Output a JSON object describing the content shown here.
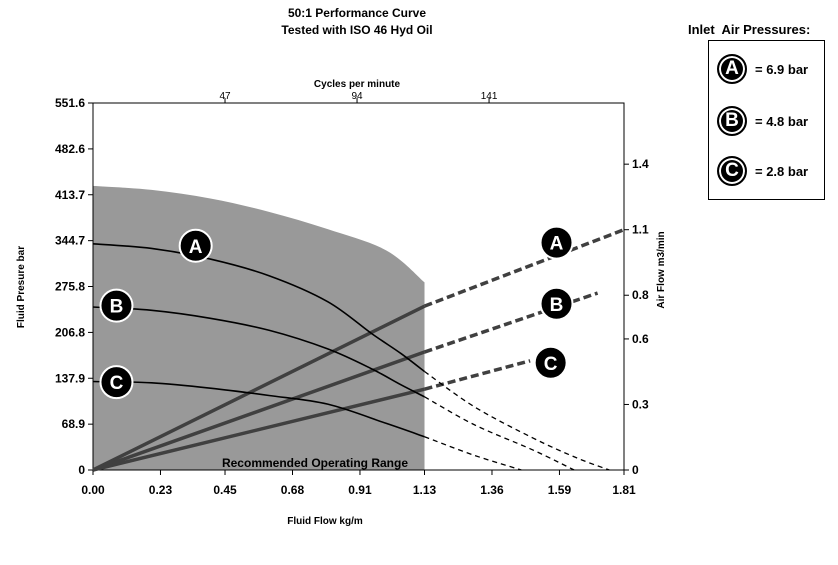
{
  "chart_data": {
    "type": "line",
    "title": "50:1 Performance Curve",
    "subtitle": "Tested with ISO 46 Hyd Oil",
    "xlabel": "Fluid Flow  kg/m",
    "ylabel_left": "Fluid Presure   bar",
    "ylabel_right": "Air Flow  m3/min",
    "xlabel_top": "Cycles per minute",
    "x_ticks": [
      "0.00",
      "0.23",
      "0.45",
      "0.68",
      "0.91",
      "1.13",
      "1.36",
      "1.59",
      "1.81"
    ],
    "x_top_ticks": [
      "47",
      "94",
      "141"
    ],
    "y_left_ticks": [
      "0",
      "68.9",
      "137.9",
      "206.8",
      "275.8",
      "344.7",
      "413.7",
      "482.6",
      "551.6"
    ],
    "y_right_ticks": [
      "0",
      "0.3",
      "0.6",
      "0.8",
      "1.1",
      "1.4"
    ],
    "xlim": [
      0,
      1.81
    ],
    "ylim_left": [
      0,
      551.6
    ],
    "ylim_right": [
      0,
      1.68
    ],
    "operating_range_label": "Recommended Operating Range",
    "operating_range": {
      "x_max": 1.13,
      "boundary": [
        [
          0,
          427
        ],
        [
          0.2,
          421
        ],
        [
          0.4,
          408
        ],
        [
          0.6,
          388
        ],
        [
          0.8,
          362
        ],
        [
          1.0,
          330
        ],
        [
          1.13,
          282
        ]
      ]
    },
    "pressure_series": [
      {
        "name": "A",
        "values": [
          [
            0,
            340
          ],
          [
            0.2,
            333
          ],
          [
            0.4,
            317
          ],
          [
            0.6,
            292
          ],
          [
            0.8,
            253
          ],
          [
            0.95,
            205
          ],
          [
            1.05,
            175
          ],
          [
            1.13,
            148
          ],
          [
            1.3,
            95
          ],
          [
            1.5,
            48
          ],
          [
            1.65,
            18
          ],
          [
            1.76,
            0
          ]
        ]
      },
      {
        "name": "B",
        "values": [
          [
            0,
            245
          ],
          [
            0.2,
            240
          ],
          [
            0.4,
            228
          ],
          [
            0.6,
            210
          ],
          [
            0.8,
            182
          ],
          [
            0.95,
            152
          ],
          [
            1.05,
            128
          ],
          [
            1.13,
            110
          ],
          [
            1.3,
            68
          ],
          [
            1.5,
            30
          ],
          [
            1.64,
            0
          ]
        ]
      },
      {
        "name": "C",
        "values": [
          [
            0,
            133
          ],
          [
            0.2,
            131
          ],
          [
            0.4,
            123
          ],
          [
            0.6,
            112
          ],
          [
            0.8,
            99
          ],
          [
            1.0,
            70
          ],
          [
            1.13,
            50
          ],
          [
            1.3,
            22
          ],
          [
            1.46,
            0
          ]
        ]
      }
    ],
    "air_flow_series": [
      {
        "name": "A",
        "values": [
          [
            0,
            0
          ],
          [
            1.13,
            0.75
          ],
          [
            1.81,
            1.1
          ]
        ]
      },
      {
        "name": "B",
        "values": [
          [
            0,
            0
          ],
          [
            1.13,
            0.54
          ],
          [
            1.72,
            0.81
          ]
        ]
      },
      {
        "name": "C",
        "values": [
          [
            0,
            0
          ],
          [
            1.13,
            0.37
          ],
          [
            1.49,
            0.5
          ]
        ]
      }
    ],
    "colors": {
      "operating_range": "#999999",
      "series": "#000000",
      "air_flow": "#404040"
    }
  },
  "legend": {
    "title": "Inlet  Air Pressures:",
    "items": [
      {
        "letter": "A",
        "value": "= 6.9 bar"
      },
      {
        "letter": "B",
        "value": "= 4.8 bar"
      },
      {
        "letter": "C",
        "value": "= 2.8 bar"
      }
    ]
  }
}
